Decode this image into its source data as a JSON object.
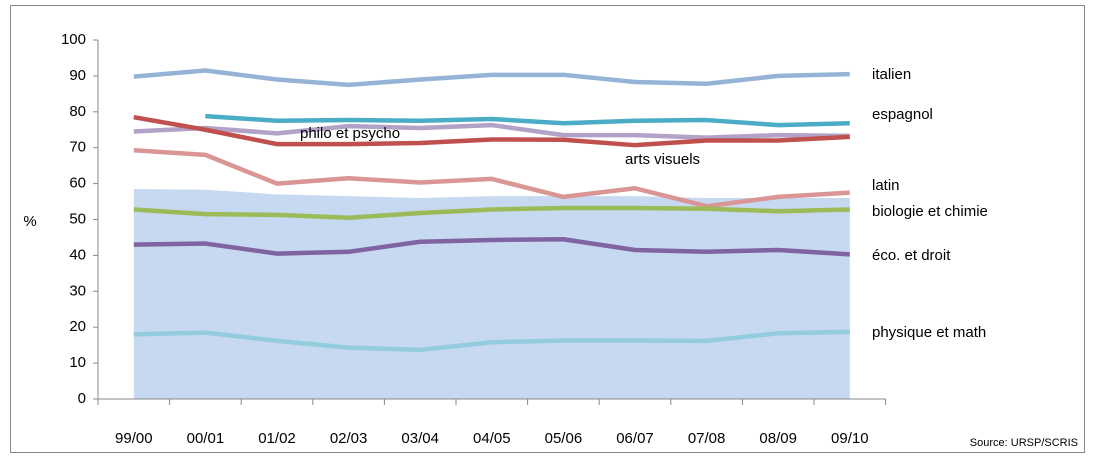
{
  "chart_data": {
    "type": "line",
    "y_label": "%",
    "source": "Source: URSP/SCRIS",
    "categories": [
      "99/00",
      "00/01",
      "01/02",
      "02/03",
      "03/04",
      "04/05",
      "05/06",
      "06/07",
      "07/08",
      "08/09",
      "09/10"
    ],
    "ylim": [
      0,
      100
    ],
    "yticks": [
      0,
      10,
      20,
      30,
      40,
      50,
      60,
      70,
      80,
      90,
      100
    ],
    "area": {
      "color": "#c6d9f1",
      "values": [
        58.5,
        58.3,
        57,
        56.5,
        56,
        56.5,
        56.5,
        56.5,
        56,
        56,
        56
      ]
    },
    "series": [
      {
        "name": "italien",
        "color": "#95b3d7",
        "values": [
          89.8,
          91.5,
          89,
          87.5,
          89,
          90.3,
          90.3,
          88.3,
          87.8,
          90,
          90.5
        ]
      },
      {
        "name": "espagnol",
        "color": "#4bacc6",
        "values": [
          null,
          78.8,
          77.5,
          77.7,
          77.5,
          78,
          76.8,
          77.5,
          77.7,
          76.3,
          76.8
        ]
      },
      {
        "name": "philo et psycho",
        "color": "#b3a2c7",
        "values": [
          74.5,
          75.5,
          74,
          76,
          75.5,
          76.3,
          73.5,
          73.5,
          72.8,
          73.5,
          73.3
        ]
      },
      {
        "name": "arts visuels",
        "color": "#c0504d",
        "values": [
          78.5,
          75,
          71,
          71,
          71.3,
          72.3,
          72.2,
          70.7,
          72,
          72,
          73
        ]
      },
      {
        "name": "latin",
        "color": "#d99694",
        "values": [
          69.3,
          68,
          60,
          61.5,
          60.3,
          61.3,
          56.3,
          58.7,
          53.7,
          56.3,
          57.5
        ]
      },
      {
        "name": "biologie et chimie",
        "color": "#9bbb59",
        "values": [
          52.8,
          51.5,
          51.3,
          50.5,
          51.8,
          52.8,
          53.2,
          53.2,
          53,
          52.3,
          52.8
        ]
      },
      {
        "name": "éco. et droit",
        "color": "#8064a2",
        "values": [
          43,
          43.3,
          40.5,
          41,
          43.8,
          44.3,
          44.5,
          41.5,
          41,
          41.5,
          40.3
        ]
      },
      {
        "name": "physique et math",
        "color": "#93cddd",
        "values": [
          18,
          18.5,
          16.2,
          14.3,
          13.7,
          15.8,
          16.3,
          16.3,
          16.2,
          18.3,
          18.7
        ]
      }
    ]
  }
}
